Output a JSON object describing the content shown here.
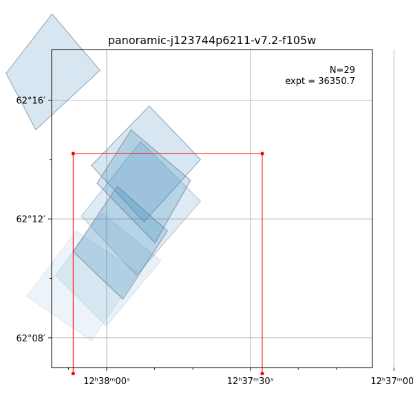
{
  "chart_data": {
    "type": "scatter",
    "title": "panoramic-j123744p6211-v7.2-f105w",
    "xlabel": "",
    "ylabel": "",
    "x_axis": {
      "quantity": "right ascension (seconds of time past 12h37m)",
      "range": [
        71.5,
        4.5
      ],
      "ticks": [
        {
          "value": 60,
          "label": "12ʰ38ᵐ00ˢ"
        },
        {
          "value": 30,
          "label": "12ʰ37ᵐ30ˢ"
        },
        {
          "value": 0,
          "label": "12ʰ37ᵐ00ˢ"
        }
      ],
      "minor_ticks": [
        68,
        50,
        42,
        20,
        12
      ]
    },
    "y_axis": {
      "quantity": "declination (arcminutes past 62°)",
      "range": [
        7.0,
        17.7
      ],
      "ticks": [
        {
          "value": 16,
          "label": "62°16′"
        },
        {
          "value": 12,
          "label": "62°12′"
        },
        {
          "value": 8,
          "label": "62°08′"
        }
      ],
      "minor_ticks": [
        14,
        10
      ]
    },
    "grid": true,
    "annotations": {
      "count_label": "N=29",
      "exposure_label": "expt = 36350.7"
    },
    "footprints": [
      {
        "corners": [
          [
            74.8,
            15.0
          ],
          [
            61.4,
            17.0
          ],
          [
            71.4,
            18.9
          ],
          [
            81.0,
            16.9
          ]
        ],
        "alpha": 0.18,
        "edge": "#6a7a8a"
      },
      {
        "corners": [
          [
            49.9,
            11.2
          ],
          [
            42.5,
            13.3
          ],
          [
            54.9,
            15.0
          ],
          [
            62.0,
            13.2
          ]
        ],
        "alpha": 0.2,
        "edge": "#6a7a8a"
      },
      {
        "corners": [
          [
            52.2,
            11.9
          ],
          [
            40.4,
            14.0
          ],
          [
            51.1,
            15.8
          ],
          [
            63.2,
            13.8
          ]
        ],
        "alpha": 0.18,
        "edge": "#6a7a8a"
      },
      {
        "corners": [
          [
            56.6,
            9.3
          ],
          [
            47.3,
            11.6
          ],
          [
            57.8,
            13.1
          ],
          [
            67.0,
            10.9
          ]
        ],
        "alpha": 0.2,
        "edge": "#6a7a8a"
      },
      {
        "corners": [
          [
            53.8,
            10.1
          ],
          [
            40.4,
            12.6
          ],
          [
            52.9,
            14.6
          ],
          [
            65.3,
            12.1
          ]
        ],
        "alpha": 0.15,
        "edge": "#8a9aa6"
      },
      {
        "corners": [
          [
            60.1,
            8.4
          ],
          [
            48.7,
            10.6
          ],
          [
            61.0,
            12.2
          ],
          [
            70.7,
            10.1
          ]
        ],
        "alpha": 0.1,
        "edge": "#a6b2bc"
      },
      {
        "corners": [
          [
            63.2,
            7.9
          ],
          [
            53.4,
            10.2
          ],
          [
            66.4,
            11.6
          ],
          [
            76.7,
            9.4
          ]
        ],
        "alpha": 0.08,
        "edge": "#b3bec6"
      }
    ],
    "scan_path": {
      "color": "#ff0000",
      "points": [
        {
          "x": 67.0,
          "y": 6.8
        },
        {
          "x": 67.0,
          "y": 14.2
        },
        {
          "x": 27.5,
          "y": 14.2
        },
        {
          "x": 27.5,
          "y": 6.8
        }
      ]
    }
  }
}
